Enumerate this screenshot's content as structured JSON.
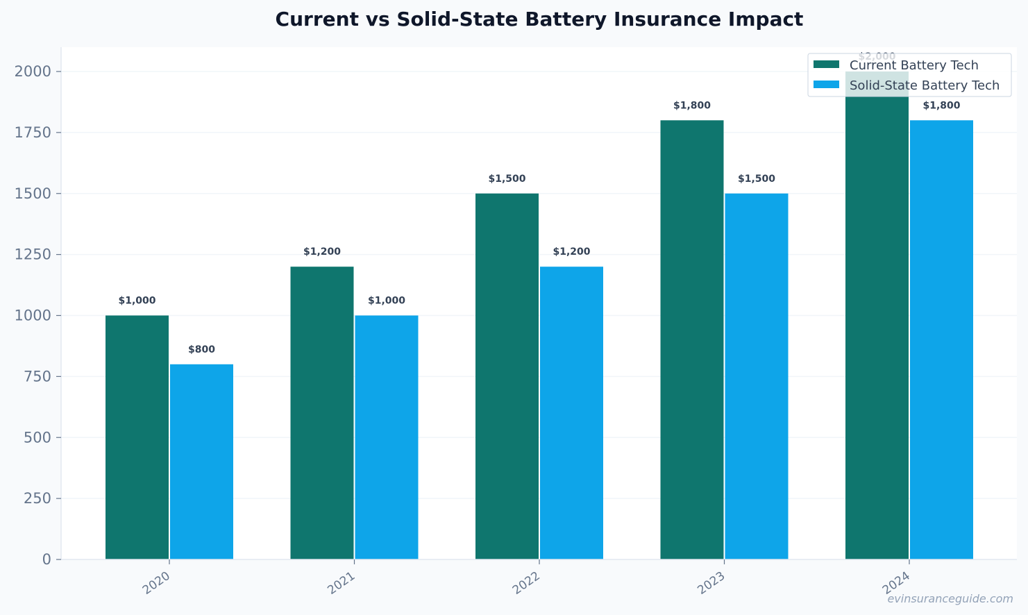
{
  "chart_data": {
    "type": "bar",
    "title": "Current vs Solid-State Battery Insurance Impact",
    "xlabel": "",
    "ylabel": "",
    "categories": [
      "2020",
      "2021",
      "2022",
      "2023",
      "2024"
    ],
    "series": [
      {
        "name": "Current Battery Tech",
        "color": "#0f766e",
        "values": [
          1000,
          1200,
          1500,
          1800,
          2000
        ],
        "labels": [
          "$1,000",
          "$1,200",
          "$1,500",
          "$1,800",
          "$2,000"
        ]
      },
      {
        "name": "Solid-State Battery Tech",
        "color": "#0ea5e9",
        "values": [
          800,
          1000,
          1200,
          1500,
          1800
        ],
        "labels": [
          "$800",
          "$1,000",
          "$1,200",
          "$1,500",
          "$1,800"
        ]
      }
    ],
    "ylim": [
      0,
      2100
    ],
    "yticks": [
      0,
      250,
      500,
      750,
      1000,
      1250,
      1500,
      1750,
      2000
    ],
    "grid": true,
    "legend_position": "top-right",
    "watermark": "evinsuranceguide.com"
  }
}
